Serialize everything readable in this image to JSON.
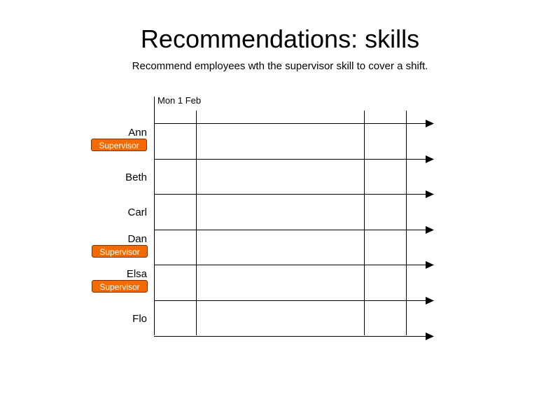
{
  "title": "Recommendations: skills",
  "subtitle": "Recommend employees wth the supervisor skill to cover a shift.",
  "timeline": {
    "start_label": "Mon 1 Feb"
  },
  "colors": {
    "badge": "#f26a00",
    "badge_border": "#7a3300",
    "line": "#000000"
  },
  "employees": [
    {
      "name": "Ann",
      "skill": "Supervisor"
    },
    {
      "name": "Beth",
      "skill": ""
    },
    {
      "name": "Carl",
      "skill": ""
    },
    {
      "name": "Dan",
      "skill": "Supervisor"
    },
    {
      "name": "Elsa",
      "skill": "Supervisor"
    },
    {
      "name": "Flo",
      "skill": ""
    }
  ]
}
